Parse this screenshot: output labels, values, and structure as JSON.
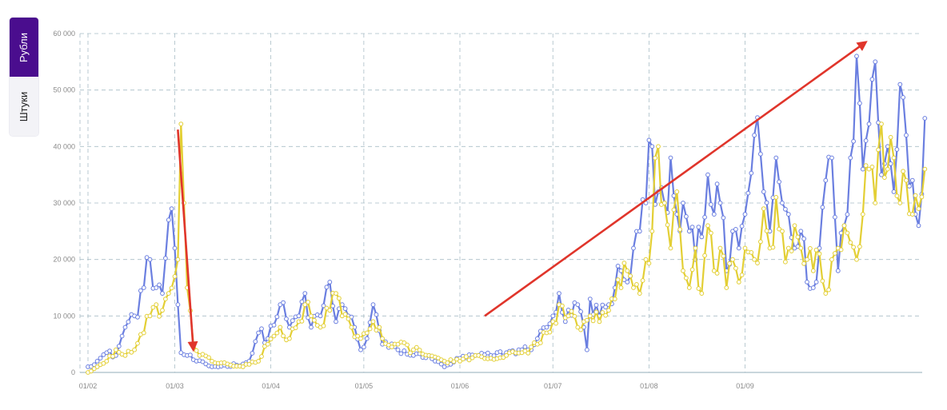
{
  "toggle": {
    "rubles_label": "Рубли",
    "pieces_label": "Штуки",
    "active": "rubles"
  },
  "colors": {
    "series_blue": "#6b7fe0",
    "series_yellow": "#e3cf35",
    "arrow": "#e0352b",
    "grid": "#a9bdc6",
    "accent": "#4a0d8e"
  },
  "chart_data": {
    "type": "line",
    "ylim": [
      0,
      60000
    ],
    "yticks": [
      0,
      10000,
      20000,
      30000,
      40000,
      50000,
      60000
    ],
    "ytick_labels": [
      "0",
      "10 000",
      "20 000",
      "30 000",
      "40 000",
      "50 000",
      "60 000"
    ],
    "xticks": [
      "01/02",
      "01/03",
      "01/04",
      "01/05",
      "01/06",
      "01/07",
      "01/08",
      "01/09"
    ],
    "x_day_range": [
      0,
      240
    ],
    "xtick_days": [
      0,
      28,
      59,
      89,
      120,
      150,
      181,
      212
    ],
    "grid": true,
    "series": [
      {
        "color": "blue",
        "anchors": [
          [
            0,
            1000
          ],
          [
            3,
            2000
          ],
          [
            6,
            3500
          ],
          [
            9,
            3000
          ],
          [
            12,
            8000
          ],
          [
            15,
            10000
          ],
          [
            18,
            15000
          ],
          [
            20,
            20000
          ],
          [
            22,
            15000
          ],
          [
            24,
            14000
          ],
          [
            26,
            27000
          ],
          [
            27,
            29000
          ],
          [
            28,
            22000
          ],
          [
            29,
            12000
          ],
          [
            30,
            3500
          ],
          [
            32,
            3000
          ],
          [
            35,
            2000
          ],
          [
            40,
            1000
          ],
          [
            50,
            1500
          ],
          [
            52,
            2000
          ],
          [
            55,
            7000
          ],
          [
            58,
            6000
          ],
          [
            62,
            12000
          ],
          [
            65,
            8000
          ],
          [
            68,
            10000
          ],
          [
            70,
            14000
          ],
          [
            72,
            8000
          ],
          [
            75,
            10000
          ],
          [
            78,
            16000
          ],
          [
            80,
            9000
          ],
          [
            82,
            12000
          ],
          [
            84,
            10000
          ],
          [
            86,
            8000
          ],
          [
            88,
            4000
          ],
          [
            90,
            6000
          ],
          [
            92,
            12000
          ],
          [
            95,
            5000
          ],
          [
            100,
            4000
          ],
          [
            105,
            3000
          ],
          [
            110,
            3000
          ],
          [
            112,
            2000
          ],
          [
            115,
            1000
          ],
          [
            120,
            2500
          ],
          [
            125,
            3000
          ],
          [
            130,
            3000
          ],
          [
            135,
            3500
          ],
          [
            140,
            4000
          ],
          [
            142,
            4000
          ],
          [
            145,
            6000
          ],
          [
            148,
            8000
          ],
          [
            150,
            10000
          ],
          [
            152,
            14000
          ],
          [
            154,
            9000
          ],
          [
            158,
            12000
          ],
          [
            160,
            8000
          ],
          [
            161,
            4000
          ],
          [
            162,
            13000
          ],
          [
            165,
            10000
          ],
          [
            168,
            12000
          ],
          [
            170,
            15000
          ],
          [
            172,
            18000
          ],
          [
            174,
            16000
          ],
          [
            176,
            22000
          ],
          [
            178,
            25000
          ],
          [
            180,
            30000
          ],
          [
            182,
            40000
          ],
          [
            184,
            32000
          ],
          [
            186,
            30000
          ],
          [
            188,
            38000
          ],
          [
            190,
            28000
          ],
          [
            192,
            30000
          ],
          [
            194,
            25000
          ],
          [
            196,
            20000
          ],
          [
            198,
            24000
          ],
          [
            200,
            35000
          ],
          [
            202,
            28000
          ],
          [
            204,
            30000
          ],
          [
            206,
            18000
          ],
          [
            208,
            25000
          ],
          [
            210,
            22000
          ],
          [
            212,
            28000
          ],
          [
            215,
            42000
          ],
          [
            218,
            32000
          ],
          [
            220,
            25000
          ],
          [
            222,
            38000
          ],
          [
            224,
            30000
          ],
          [
            226,
            28000
          ],
          [
            228,
            22000
          ],
          [
            230,
            25000
          ],
          [
            232,
            16000
          ],
          [
            234,
            15000
          ],
          [
            236,
            22000
          ],
          [
            238,
            34000
          ],
          [
            240,
            38000
          ],
          [
            242,
            18000
          ],
          [
            244,
            26000
          ],
          [
            246,
            38000
          ],
          [
            248,
            56000
          ],
          [
            250,
            36000
          ],
          [
            252,
            44000
          ],
          [
            254,
            55000
          ],
          [
            256,
            35000
          ],
          [
            258,
            40000
          ],
          [
            260,
            32000
          ],
          [
            262,
            51000
          ],
          [
            264,
            42000
          ],
          [
            266,
            34000
          ],
          [
            268,
            26000
          ],
          [
            270,
            45000
          ]
        ]
      },
      {
        "color": "yellow",
        "anchors": [
          [
            0,
            0
          ],
          [
            3,
            1000
          ],
          [
            6,
            2000
          ],
          [
            9,
            4000
          ],
          [
            12,
            3000
          ],
          [
            15,
            4000
          ],
          [
            18,
            7000
          ],
          [
            20,
            10000
          ],
          [
            22,
            12000
          ],
          [
            24,
            11000
          ],
          [
            26,
            14000
          ],
          [
            28,
            17000
          ],
          [
            29,
            20000
          ],
          [
            30,
            44000
          ],
          [
            31,
            30000
          ],
          [
            32,
            15000
          ],
          [
            34,
            5000
          ],
          [
            36,
            3000
          ],
          [
            40,
            2000
          ],
          [
            45,
            1500
          ],
          [
            50,
            1000
          ],
          [
            55,
            2000
          ],
          [
            58,
            5000
          ],
          [
            62,
            8000
          ],
          [
            65,
            6000
          ],
          [
            68,
            9000
          ],
          [
            70,
            12000
          ],
          [
            72,
            10000
          ],
          [
            75,
            8000
          ],
          [
            78,
            11000
          ],
          [
            80,
            14000
          ],
          [
            82,
            10000
          ],
          [
            85,
            8000
          ],
          [
            88,
            6000
          ],
          [
            90,
            7000
          ],
          [
            92,
            9000
          ],
          [
            95,
            6000
          ],
          [
            100,
            5000
          ],
          [
            105,
            4000
          ],
          [
            110,
            3000
          ],
          [
            115,
            2000
          ],
          [
            120,
            2000
          ],
          [
            125,
            3000
          ],
          [
            130,
            2500
          ],
          [
            135,
            3000
          ],
          [
            140,
            3500
          ],
          [
            145,
            5000
          ],
          [
            148,
            7000
          ],
          [
            150,
            9000
          ],
          [
            152,
            12000
          ],
          [
            155,
            10000
          ],
          [
            158,
            8000
          ],
          [
            160,
            9000
          ],
          [
            162,
            10000
          ],
          [
            165,
            9000
          ],
          [
            168,
            11000
          ],
          [
            170,
            13000
          ],
          [
            172,
            15000
          ],
          [
            174,
            18000
          ],
          [
            176,
            15000
          ],
          [
            178,
            14000
          ],
          [
            180,
            20000
          ],
          [
            182,
            25000
          ],
          [
            184,
            40000
          ],
          [
            186,
            30000
          ],
          [
            188,
            22000
          ],
          [
            190,
            32000
          ],
          [
            192,
            18000
          ],
          [
            194,
            15000
          ],
          [
            196,
            22000
          ],
          [
            198,
            14000
          ],
          [
            200,
            26000
          ],
          [
            202,
            18000
          ],
          [
            204,
            22000
          ],
          [
            206,
            15000
          ],
          [
            208,
            20000
          ],
          [
            210,
            16000
          ],
          [
            212,
            22000
          ],
          [
            215,
            20000
          ],
          [
            218,
            29000
          ],
          [
            220,
            22000
          ],
          [
            222,
            31000
          ],
          [
            224,
            25000
          ],
          [
            226,
            22000
          ],
          [
            228,
            26000
          ],
          [
            230,
            22000
          ],
          [
            232,
            20000
          ],
          [
            234,
            18000
          ],
          [
            236,
            21000
          ],
          [
            238,
            14000
          ],
          [
            240,
            20000
          ],
          [
            242,
            22000
          ],
          [
            244,
            26000
          ],
          [
            246,
            23000
          ],
          [
            248,
            20000
          ],
          [
            250,
            28000
          ],
          [
            252,
            36000
          ],
          [
            254,
            30000
          ],
          [
            256,
            44000
          ],
          [
            258,
            36000
          ],
          [
            260,
            38000
          ],
          [
            262,
            30000
          ],
          [
            264,
            34000
          ],
          [
            266,
            28000
          ],
          [
            268,
            29000
          ],
          [
            270,
            36000
          ]
        ]
      }
    ],
    "annotations": [
      {
        "type": "arrow",
        "from": [
          29,
          43000
        ],
        "to": [
          34,
          4000
        ]
      },
      {
        "type": "arrow",
        "from": [
          128,
          10000
        ],
        "to": [
          251,
          58500
        ]
      }
    ]
  }
}
